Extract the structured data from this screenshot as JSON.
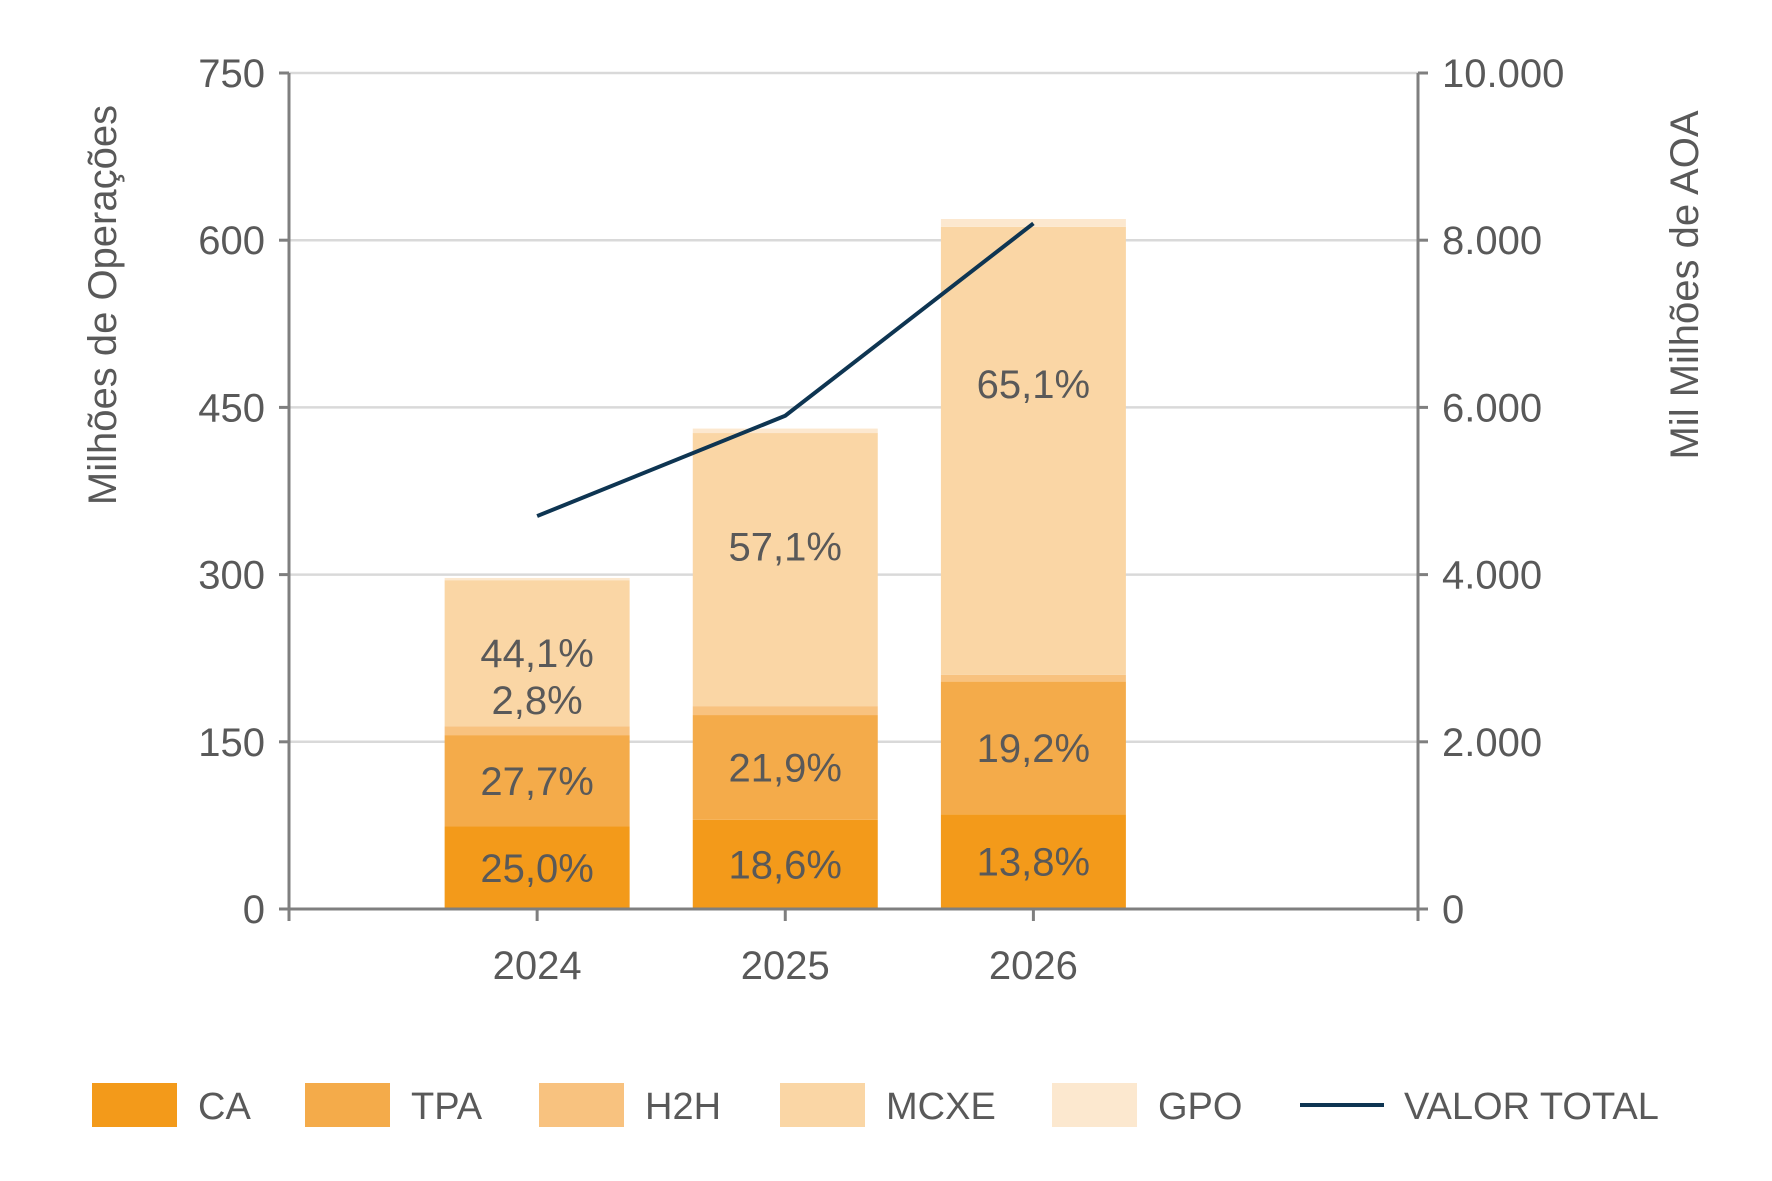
{
  "chart_data": {
    "type": "bar",
    "stacked": true,
    "categories": [
      "2024",
      "2025",
      "2026"
    ],
    "y_left": {
      "label": "Milhões de Operações",
      "ylim": [
        0,
        750
      ],
      "ticks": [
        0,
        150,
        300,
        450,
        600,
        750
      ],
      "tick_labels": [
        "0",
        "150",
        "300",
        "450",
        "600",
        "750"
      ]
    },
    "y_right": {
      "label": "Mil Milhões de AOA",
      "ylim": [
        0,
        10000
      ],
      "ticks": [
        0,
        2000,
        4000,
        6000,
        8000,
        10000
      ],
      "tick_labels": [
        "0",
        "2.000",
        "4.000",
        "6.000",
        "8.000",
        "10.000"
      ]
    },
    "grid": true,
    "series": [
      {
        "name": "CA",
        "color": "#F39A1A",
        "values": [
          74,
          80,
          85
        ],
        "labels": [
          "25,0%",
          "18,6%",
          "13,8%"
        ]
      },
      {
        "name": "TPA",
        "color": "#F4AB4A",
        "values": [
          82,
          94,
          119
        ],
        "labels": [
          "27,7%",
          "21,9%",
          "19,2%"
        ]
      },
      {
        "name": "H2H",
        "color": "#F8C27F",
        "values": [
          8,
          8,
          6
        ],
        "labels": [
          "2,8%",
          "",
          ""
        ]
      },
      {
        "name": "MCXE",
        "color": "#FAD6A5",
        "values": [
          131,
          245,
          402
        ],
        "labels": [
          "44,1%",
          "57,1%",
          "65,1%"
        ]
      },
      {
        "name": "GPO",
        "color": "#FCE8CF",
        "values": [
          2,
          4,
          7
        ],
        "labels": [
          "",
          "",
          ""
        ]
      }
    ],
    "line_series": {
      "name": "VALOR TOTAL",
      "color": "#0E3552",
      "axis": "right",
      "values": [
        4700,
        5900,
        8200
      ]
    },
    "legend": {
      "position": "bottom",
      "items": [
        "CA",
        "TPA",
        "H2H",
        "MCXE",
        "GPO",
        "VALOR TOTAL"
      ]
    }
  }
}
